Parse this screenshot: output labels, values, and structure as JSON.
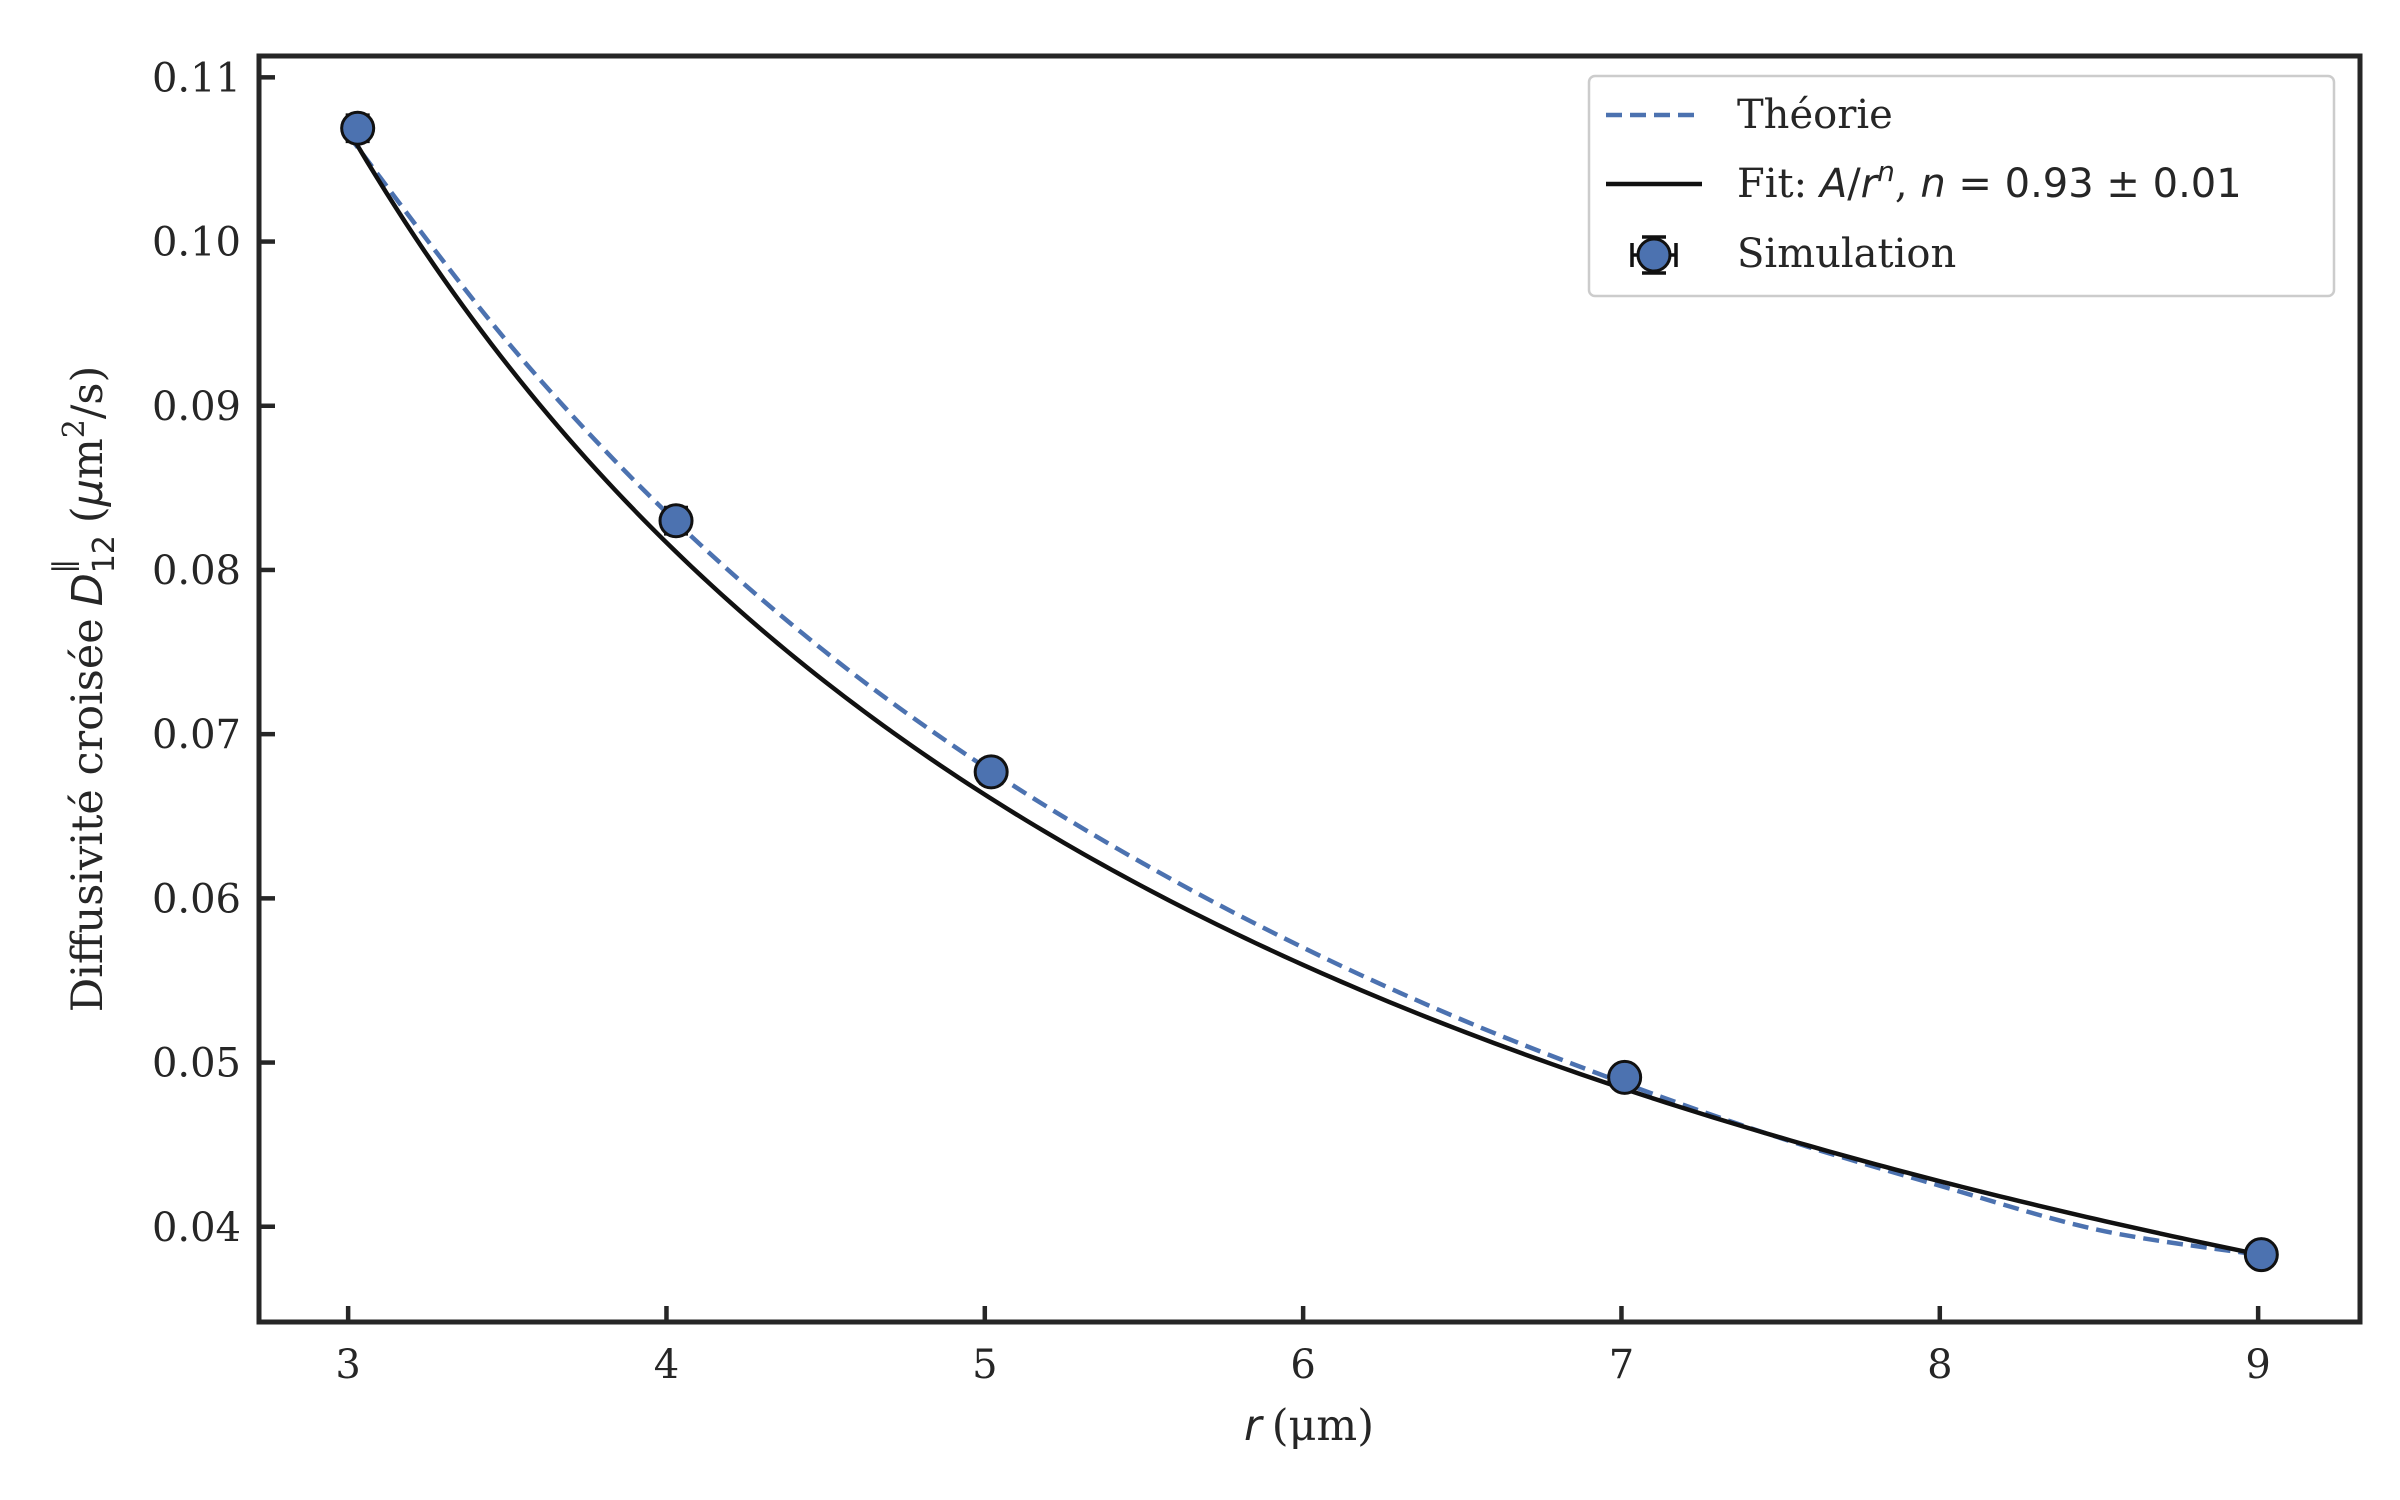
{
  "chart_data": {
    "type": "line",
    "title": "",
    "xlabel": {
      "var": "r",
      "unit": "(μm)"
    },
    "ylabel": {
      "prefix": "Diffusivité croisée",
      "var": "D",
      "sub": "12",
      "sup": "∥",
      "unit_pre": "(",
      "unit_mu": "μ",
      "unit_m": "m",
      "unit_sq": "2",
      "unit_post": "/s)"
    },
    "xlim": [
      2.72,
      9.32
    ],
    "ylim": [
      0.0342,
      0.1113
    ],
    "xticks": [
      3,
      4,
      5,
      6,
      7,
      8,
      9
    ],
    "xtick_labels": [
      "3",
      "4",
      "5",
      "6",
      "7",
      "8",
      "9"
    ],
    "yticks": [
      0.04,
      0.05,
      0.06,
      0.07,
      0.08,
      0.09,
      0.1,
      0.11
    ],
    "ytick_labels": [
      "0.04",
      "0.05",
      "0.06",
      "0.07",
      "0.08",
      "0.09",
      "0.10",
      "0.11"
    ],
    "grid": false,
    "legend_position": "top-right",
    "series": [
      {
        "name": "Théorie",
        "style": "dashed",
        "color": "#4c72b0",
        "x": [
          3.0,
          3.5,
          4.0,
          4.5,
          5.0,
          5.5,
          6.0,
          6.5,
          7.0,
          7.5,
          8.0,
          8.5,
          9.0
        ],
        "y": [
          0.1065,
          0.0939,
          0.0835,
          0.075,
          0.068,
          0.0621,
          0.057,
          0.0526,
          0.0488,
          0.0454,
          0.0425,
          0.0398,
          0.0383
        ]
      },
      {
        "name": "Fit",
        "legend_parts": {
          "lead": "Fit: ",
          "A": "A",
          "slash": "/",
          "r": "r",
          "n_sup": "n",
          "comma": ", ",
          "n": "n",
          "rest": " = 0.93 ± 0.01"
        },
        "style": "solid",
        "color": "#111111",
        "A": 0.2977,
        "n": 0.933,
        "x_range": [
          3.0,
          9.0
        ]
      },
      {
        "name": "Simulation",
        "style": "markers",
        "color": "#4c72b0",
        "edge_color": "#111111",
        "x": [
          3.03,
          4.03,
          5.02,
          7.01,
          9.01
        ],
        "y": [
          0.1069,
          0.083,
          0.0677,
          0.0491,
          0.0383
        ],
        "yerr": [
          0.0008,
          0.0008,
          0.0007,
          0.0006,
          0.0005
        ],
        "xerr": [
          0.04,
          0.04,
          0.04,
          0.04,
          0.04
        ]
      }
    ]
  }
}
